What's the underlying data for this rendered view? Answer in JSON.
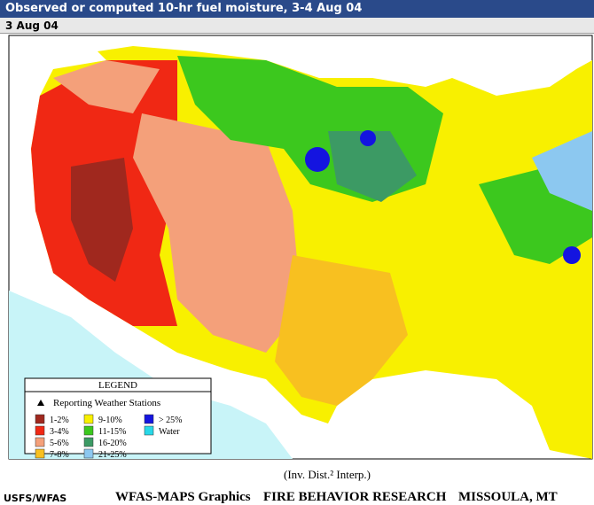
{
  "header": {
    "title": "Observed or computed 10-hr fuel moisture, 3-4 Aug 04",
    "date": "3 Aug 04"
  },
  "legend": {
    "title": "LEGEND",
    "stations": "Reporting Weather Stations",
    "items": [
      {
        "label": "1-2%",
        "color": "#a0281e"
      },
      {
        "label": "3-4%",
        "color": "#f02814"
      },
      {
        "label": "5-6%",
        "color": "#f4a07a"
      },
      {
        "label": "7-8%",
        "color": "#f8c020"
      },
      {
        "label": "9-10%",
        "color": "#f8f000"
      },
      {
        "label": "11-15%",
        "color": "#3cc81e"
      },
      {
        "label": "16-20%",
        "color": "#3c9a64"
      },
      {
        "label": "21-25%",
        "color": "#8cc8f0"
      },
      {
        "label": "> 25%",
        "color": "#1414e0"
      },
      {
        "label": "Water",
        "color": "#28d8e8"
      }
    ]
  },
  "map_note": "(Inv. Dist.² Interp.)",
  "footer": {
    "agency": "USFS/WFAS",
    "graphics": "WFAS-MAPS Graphics",
    "lab": "FIRE BEHAVIOR RESEARCH",
    "place": "MISSOULA, MT"
  }
}
